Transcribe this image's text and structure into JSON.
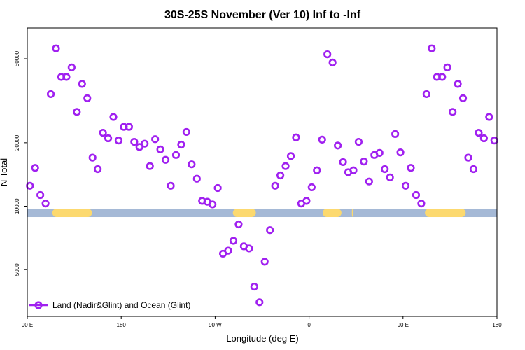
{
  "chart_data": {
    "type": "scatter",
    "title": "30S-25S November (Ver 10)   Inf to -Inf",
    "xlabel": "Longitude (deg E)",
    "ylabel": "N Total",
    "y_scale": "log",
    "xlim": [
      90,
      540
    ],
    "ylim": [
      3000,
      70000
    ],
    "x_ticks": [
      {
        "value": 90,
        "label": "90 E"
      },
      {
        "value": 180,
        "label": "180"
      },
      {
        "value": 270,
        "label": "90 W"
      },
      {
        "value": 360,
        "label": "0"
      },
      {
        "value": 450,
        "label": "90 E"
      },
      {
        "value": 540,
        "label": "180"
      }
    ],
    "y_ticks": [
      {
        "value": 5000,
        "label": "5000"
      },
      {
        "value": 10000,
        "label": "10000"
      },
      {
        "value": 20000,
        "label": "20000"
      },
      {
        "value": 50000,
        "label": "50000"
      }
    ],
    "series": [
      {
        "name": "Land (Nadir&Glint) and Ocean (Glint)",
        "color": "#a020f0",
        "marker": "open-circle",
        "points": [
          [
            92.5,
            12500
          ],
          [
            97.5,
            15200
          ],
          [
            102.5,
            11300
          ],
          [
            107.5,
            10300
          ],
          [
            112.5,
            34000
          ],
          [
            117.5,
            56000
          ],
          [
            122.5,
            41000
          ],
          [
            127.5,
            41000
          ],
          [
            132.5,
            45500
          ],
          [
            137.5,
            28000
          ],
          [
            142.5,
            38000
          ],
          [
            147.5,
            32500
          ],
          [
            152.5,
            17000
          ],
          [
            157.5,
            15000
          ],
          [
            162.5,
            22300
          ],
          [
            167.5,
            21000
          ],
          [
            172.5,
            26500
          ],
          [
            177.5,
            20500
          ],
          [
            182.5,
            23800
          ],
          [
            187.5,
            23800
          ],
          [
            192.5,
            20200
          ],
          [
            197.5,
            19100
          ],
          [
            202.5,
            19800
          ],
          [
            207.5,
            15500
          ],
          [
            212.5,
            20800
          ],
          [
            217.5,
            18600
          ],
          [
            222.5,
            16600
          ],
          [
            227.5,
            12500
          ],
          [
            232.5,
            17500
          ],
          [
            237.5,
            19600
          ],
          [
            242.5,
            22500
          ],
          [
            247.5,
            15800
          ],
          [
            252.5,
            13500
          ],
          [
            257.5,
            10600
          ],
          [
            262.5,
            10500
          ],
          [
            267.5,
            10200
          ],
          [
            272.5,
            12200
          ],
          [
            277.5,
            5950
          ],
          [
            282.5,
            6150
          ],
          [
            287.5,
            6850
          ],
          [
            292.5,
            8200
          ],
          [
            297.5,
            6450
          ],
          [
            302.5,
            6300
          ],
          [
            307.5,
            4150
          ],
          [
            312.5,
            3500
          ],
          [
            317.5,
            5450
          ],
          [
            322.5,
            7700
          ],
          [
            327.5,
            12500
          ],
          [
            332.5,
            14000
          ],
          [
            337.5,
            15500
          ],
          [
            342.5,
            17300
          ],
          [
            347.5,
            21200
          ],
          [
            352.5,
            10300
          ],
          [
            357.5,
            10600
          ],
          [
            362.5,
            12300
          ],
          [
            367.5,
            14800
          ],
          [
            372.5,
            20700
          ],
          [
            377.5,
            52500
          ],
          [
            382.5,
            48000
          ],
          [
            387.5,
            19400
          ],
          [
            392.5,
            16200
          ],
          [
            397.5,
            14500
          ],
          [
            402.5,
            14800
          ],
          [
            407.5,
            20200
          ],
          [
            412.5,
            16300
          ],
          [
            417.5,
            13100
          ],
          [
            422.5,
            17500
          ],
          [
            427.5,
            17900
          ],
          [
            432.5,
            15000
          ],
          [
            437.5,
            13700
          ],
          [
            442.5,
            22000
          ],
          [
            447.5,
            18000
          ],
          [
            452.5,
            12500
          ],
          [
            457.5,
            15200
          ],
          [
            462.5,
            11300
          ],
          [
            467.5,
            10300
          ],
          [
            472.5,
            34000
          ],
          [
            477.5,
            56000
          ],
          [
            482.5,
            41000
          ],
          [
            487.5,
            41000
          ],
          [
            492.5,
            45500
          ],
          [
            497.5,
            28000
          ],
          [
            502.5,
            38000
          ],
          [
            507.5,
            32500
          ],
          [
            512.5,
            17000
          ],
          [
            517.5,
            15000
          ],
          [
            522.5,
            22300
          ],
          [
            527.5,
            21000
          ],
          [
            532.5,
            26500
          ],
          [
            537.5,
            20500
          ]
        ]
      }
    ],
    "surface_bar": {
      "y_value": 9300,
      "base_color": "#a5b9d6",
      "land_color": "#fcd96f",
      "land_ranges": [
        [
          114,
          152
        ],
        [
          287,
          309
        ],
        [
          373,
          391
        ],
        [
          401,
          402
        ],
        [
          471,
          510
        ]
      ]
    },
    "legend": {
      "position": "bottom-left"
    },
    "grid": false
  }
}
